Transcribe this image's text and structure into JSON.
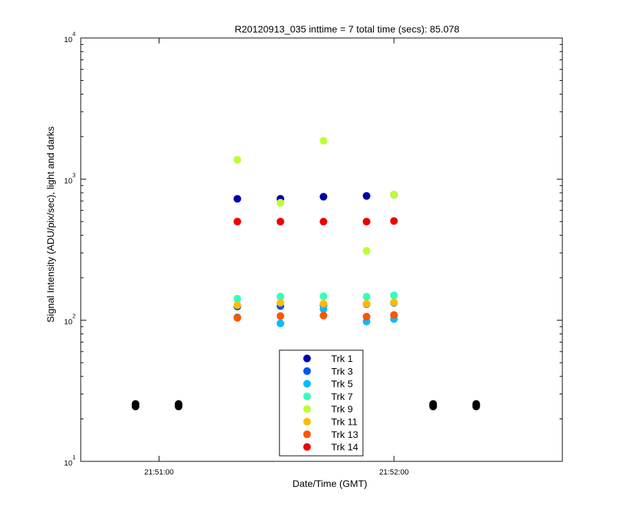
{
  "chart_data": {
    "type": "scatter",
    "title": "R20120913_035 inttime = 7 total time (secs): 85.078",
    "xlabel": "Date/Time (GMT)",
    "ylabel": "Signal Intensity (ADU/pix/sec), light and darks",
    "yscale": "log",
    "ylim": [
      10,
      10000
    ],
    "xlim": [
      "21:50:40",
      "21:52:43"
    ],
    "x_ticks": [
      "21:51:00",
      "21:52:00"
    ],
    "y_ticks": [
      {
        "base": "10",
        "exp": "1"
      },
      {
        "base": "10",
        "exp": "2"
      },
      {
        "base": "10",
        "exp": "3"
      },
      {
        "base": "10",
        "exp": "4"
      }
    ],
    "grid": false,
    "legend_position": "bottom-center",
    "x": [
      "21:51:20",
      "21:51:31",
      "21:51:42",
      "21:51:53",
      "21:52:00"
    ],
    "series": [
      {
        "name": "Trk 1",
        "color": "#0000aa",
        "values": [
          725,
          725,
          750,
          760,
          775
        ]
      },
      {
        "name": "Trk 3",
        "color": "#0055ee",
        "values": [
          125,
          126,
          128,
          130,
          133
        ]
      },
      {
        "name": "Trk 5",
        "color": "#00bbff",
        "values": [
          105,
          95,
          120,
          98,
          102
        ]
      },
      {
        "name": "Trk 7",
        "color": "#33ffbb",
        "values": [
          142,
          147,
          148,
          147,
          150
        ]
      },
      {
        "name": "Trk 9",
        "color": "#bbff33",
        "values": [
          1370,
          680,
          1870,
          310,
          775
        ]
      },
      {
        "name": "Trk 11",
        "color": "#ffbb00",
        "values": [
          128,
          133,
          131,
          131,
          134
        ]
      },
      {
        "name": "Trk 13",
        "color": "#ff5500",
        "values": [
          104,
          107,
          108,
          106,
          109
        ]
      },
      {
        "name": "Trk 14",
        "color": "#ee0000",
        "values": [
          500,
          500,
          500,
          500,
          505
        ]
      }
    ],
    "darks": {
      "color": "#000000",
      "x": [
        "21:50:54",
        "21:51:05",
        "21:52:10",
        "21:52:21"
      ],
      "values": [
        [
          24.5,
          25.5
        ],
        [
          24.5,
          25.5
        ],
        [
          24.5,
          25.5
        ],
        [
          24.5,
          25.5
        ]
      ]
    }
  }
}
